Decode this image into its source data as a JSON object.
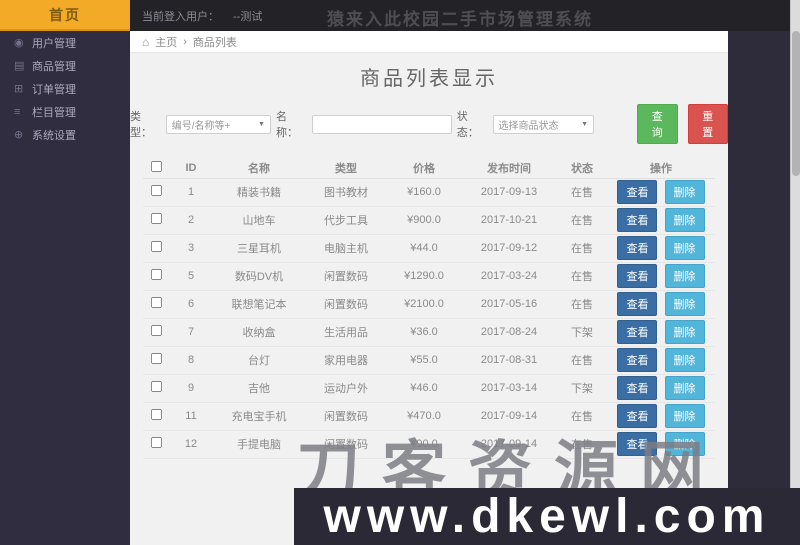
{
  "header": {
    "brand": "首页",
    "user_prefix": "当前登入用户：",
    "user_name": "--测试",
    "title": "猿来入此校园二手市场管理系统"
  },
  "sidebar": {
    "items": [
      {
        "icon": "◉",
        "icon_name": "user-icon",
        "label": "用户管理"
      },
      {
        "icon": "▤",
        "icon_name": "goods-icon",
        "label": "商品管理"
      },
      {
        "icon": "⊞",
        "icon_name": "order-icon",
        "label": "订单管理"
      },
      {
        "icon": "≡",
        "icon_name": "category-icon",
        "label": "栏目管理"
      },
      {
        "icon": "⊕",
        "icon_name": "settings-icon",
        "label": "系统设置"
      }
    ]
  },
  "breadcrumb": {
    "home_icon": "⌂",
    "home": "主页",
    "separator": "›",
    "current": "商品列表"
  },
  "main": {
    "page_title": "商品列表显示",
    "filters": {
      "type_label": "类型：",
      "type_value": "编号/名称等+",
      "name_label": "名称：",
      "name_value": "",
      "status_label": "状态：",
      "status_value": "选择商品状态",
      "caret": "▼",
      "search_label": "查询",
      "reset_label": "重置"
    },
    "table": {
      "columns": [
        "ID",
        "名称",
        "类型",
        "价格",
        "发布时间",
        "状态",
        "操作"
      ],
      "view_label": "查看",
      "delete_label": "删除",
      "rows": [
        {
          "id": "1",
          "name": "精装书籍",
          "type": "图书教材",
          "price": "¥160.0",
          "time": "2017-09-13",
          "status": "在售",
          "state": "on"
        },
        {
          "id": "2",
          "name": "山地车",
          "type": "代步工具",
          "price": "¥900.0",
          "time": "2017-10-21",
          "status": "在售",
          "state": "on"
        },
        {
          "id": "3",
          "name": "三星耳机",
          "type": "电脑主机",
          "price": "¥44.0",
          "time": "2017-09-12",
          "status": "在售",
          "state": "on"
        },
        {
          "id": "5",
          "name": "数码DV机",
          "type": "闲置数码",
          "price": "¥1290.0",
          "time": "2017-03-24",
          "status": "在售",
          "state": "on"
        },
        {
          "id": "6",
          "name": "联想笔记本",
          "type": "闲置数码",
          "price": "¥2100.0",
          "time": "2017-05-16",
          "status": "在售",
          "state": "on"
        },
        {
          "id": "7",
          "name": "收纳盒",
          "type": "生活用品",
          "price": "¥36.0",
          "time": "2017-08-24",
          "status": "下架",
          "state": "off"
        },
        {
          "id": "8",
          "name": "台灯",
          "type": "家用电器",
          "price": "¥55.0",
          "time": "2017-08-31",
          "status": "在售",
          "state": "on"
        },
        {
          "id": "9",
          "name": "吉他",
          "type": "运动户外",
          "price": "¥46.0",
          "time": "2017-03-14",
          "status": "下架",
          "state": "off"
        },
        {
          "id": "11",
          "name": "充电宝手机",
          "type": "闲置数码",
          "price": "¥470.0",
          "time": "2017-09-14",
          "status": "在售",
          "state": "on"
        },
        {
          "id": "12",
          "name": "手提电脑",
          "type": "闲置数码",
          "price": "¥90.0",
          "time": "2017-09-14",
          "status": "在售",
          "state": "on"
        }
      ]
    }
  },
  "watermark": {
    "line1": "刀客资源网",
    "line2": "www.dkewl.com"
  },
  "colors": {
    "accent_orange": "#f3ab27",
    "header_bg": "#232226",
    "sidebar_bg": "#312d40",
    "search_green": "#5cb85c",
    "reset_red": "#d9534f",
    "view_blue": "#3a6ea5",
    "delete_blue": "#52b5da",
    "status_on_blue": "#4752d9",
    "status_off_red": "#d9534f"
  }
}
